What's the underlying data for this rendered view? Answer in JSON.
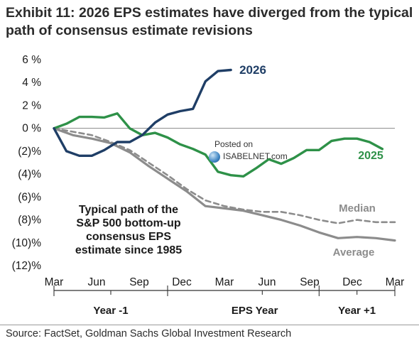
{
  "title": "Exhibit 11: 2026 EPS estimates have diverged from the typical path of consensus estimate revisions",
  "source": "Source: FactSet, Goldman Sachs Global Investment Research",
  "watermark": {
    "line1": "Posted on",
    "line2": "ISABELNET.com"
  },
  "colors": {
    "s2026": "#1f3e66",
    "s2025": "#2e9148",
    "average": "#8c8c8c",
    "median": "#8c8c8c",
    "axis": "#333333",
    "zero_line": "#888888"
  },
  "chart_data": {
    "type": "line",
    "title": "Exhibit 11: 2026 EPS estimates have diverged from the typical path of consensus estimate revisions",
    "x_tick_labels": [
      "Mar",
      "Jun",
      "Sep",
      "Dec",
      "Mar",
      "Jun",
      "Sep",
      "Dec",
      "Mar"
    ],
    "x_groups": [
      "Year -1",
      "EPS Year",
      "Year +1"
    ],
    "xlabel": "",
    "ylabel": "",
    "ylim": [
      -12,
      6
    ],
    "y_tick_values": [
      6,
      4,
      2,
      0,
      -2,
      -4,
      -6,
      -8,
      -10,
      -12
    ],
    "y_tick_labels": [
      "6 %",
      "4 %",
      "2 %",
      "0 %",
      "(2)%",
      "(4)%",
      "(6)%",
      "(8)%",
      "(10)%",
      "(12)%"
    ],
    "annotation": "Typical path of the S&P 500 bottom-up consensus EPS estimate since 1985",
    "series": [
      {
        "name": "2026",
        "x": [
          0,
          0.33,
          0.67,
          1,
          1.33,
          1.67,
          2,
          2.33,
          2.67,
          3,
          3.33,
          3.67,
          4,
          4.33,
          4.67
        ],
        "values": [
          0,
          -2.0,
          -2.4,
          -2.4,
          -1.9,
          -1.2,
          -1.2,
          -0.6,
          0.5,
          1.2,
          1.5,
          1.7,
          4.1,
          5.0,
          5.1
        ]
      },
      {
        "name": "2025",
        "x": [
          0,
          0.33,
          0.67,
          1,
          1.33,
          1.67,
          2,
          2.33,
          2.67,
          3,
          3.33,
          3.67,
          4,
          4.33,
          4.67,
          5,
          5.33,
          5.67,
          6,
          6.33,
          6.67,
          7,
          7.33,
          7.67,
          8,
          8.33,
          8.67
        ],
        "values": [
          0,
          0.4,
          1.0,
          1.0,
          0.95,
          1.3,
          0.0,
          -0.6,
          -0.4,
          -0.8,
          -1.4,
          -1.8,
          -2.3,
          -3.8,
          -4.1,
          -4.2,
          -3.5,
          -2.7,
          -3.1,
          -2.6,
          -1.9,
          -1.9,
          -1.1,
          -0.9,
          -0.9,
          -1.2,
          -1.8
        ]
      },
      {
        "name": "Average",
        "x": [
          0,
          0.5,
          1,
          1.5,
          2,
          2.5,
          3,
          3.5,
          4,
          4.5,
          5,
          5.5,
          6,
          6.5,
          7,
          7.5,
          8,
          8.5,
          9
        ],
        "values": [
          0,
          -0.6,
          -0.9,
          -1.3,
          -2.1,
          -3.3,
          -4.4,
          -5.5,
          -6.8,
          -7.0,
          -7.2,
          -7.6,
          -8.0,
          -8.5,
          -9.1,
          -9.6,
          -9.5,
          -9.6,
          -9.8
        ]
      },
      {
        "name": "Median",
        "x": [
          0,
          0.5,
          1,
          1.5,
          2,
          2.5,
          3,
          3.5,
          4,
          4.5,
          5,
          5.5,
          6,
          6.5,
          7,
          7.5,
          8,
          8.5,
          9
        ],
        "values": [
          0,
          -0.3,
          -0.6,
          -1.2,
          -1.9,
          -3.0,
          -4.1,
          -5.3,
          -6.3,
          -6.8,
          -7.1,
          -7.3,
          -7.3,
          -7.6,
          -8.0,
          -8.3,
          -8.0,
          -8.2,
          -8.2
        ]
      }
    ]
  }
}
